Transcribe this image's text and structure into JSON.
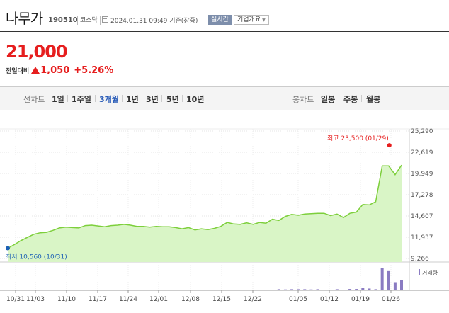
{
  "stock": {
    "name": "나무가",
    "code": "190510",
    "market": "코스닥",
    "datetime": "2024.01.31 09:49 기준(장중)",
    "realtime_label": "실시간",
    "company_label": "기업개요",
    "price": "21,000",
    "change_label": "전일대비",
    "change": "1,050",
    "change_pct": "+5.26%"
  },
  "colors": {
    "up": "#e61e1e",
    "line": "#7dcf3b",
    "fill": "#d9f5c6",
    "volume": "#8a7bc2",
    "low": "#1b5fb5"
  },
  "period_tabs": {
    "line_label": "선차트",
    "items": [
      "1일",
      "1주일",
      "3개월",
      "1년",
      "3년",
      "5년",
      "10년"
    ],
    "active": "3개월",
    "candle_label": "봉차트",
    "candle_items": [
      "일봉",
      "주봉",
      "월봉"
    ]
  },
  "chart_data": {
    "type": "area",
    "y_ticks": [
      "25,290",
      "22,619",
      "19,949",
      "17,278",
      "14,607",
      "11,937",
      "9,266"
    ],
    "x_ticks": [
      "10/31",
      "11/03",
      "11/10",
      "11/17",
      "11/24",
      "12/01",
      "12/08",
      "12/15",
      "12/22",
      "01/05",
      "01/12",
      "01/19",
      "01/26"
    ],
    "ylim": [
      9266,
      25290
    ],
    "prices": [
      10560,
      11000,
      11500,
      11900,
      12300,
      12500,
      12550,
      12800,
      13100,
      13200,
      13150,
      13100,
      13400,
      13450,
      13350,
      13250,
      13400,
      13450,
      13550,
      13450,
      13300,
      13300,
      13200,
      13300,
      13250,
      13250,
      13150,
      13000,
      13150,
      12850,
      13000,
      12900,
      13050,
      13300,
      13800,
      13600,
      13550,
      13750,
      13550,
      13800,
      13700,
      14200,
      14050,
      14550,
      14800,
      14700,
      14850,
      14900,
      14950,
      14950,
      14650,
      14850,
      14400,
      14950,
      15100,
      16050,
      16000,
      16400,
      20900,
      20900,
      19800,
      21000
    ],
    "volumes": [
      0,
      0,
      0,
      0,
      0,
      0,
      0,
      0,
      0,
      0,
      0,
      0,
      0,
      0,
      0,
      0,
      0,
      0,
      0,
      0,
      0,
      0,
      0,
      0,
      0,
      0,
      0,
      0,
      0,
      0,
      0,
      0,
      0,
      0,
      0.03,
      0.03,
      0,
      0,
      0,
      0,
      0,
      0.03,
      0.05,
      0.04,
      0.05,
      0.05,
      0.05,
      0.04,
      0.05,
      0.03,
      0.03,
      0.05,
      0.03,
      0.06,
      0.06,
      0.11,
      0.08,
      0.05,
      1,
      0.88,
      0.36,
      0.44
    ],
    "high_label": "최고 23,500 (01/29)",
    "high_value": 23500,
    "high_index": 59,
    "low_label": "최저 10,560 (10/31)",
    "low_value": 10560,
    "low_index": 0,
    "volume_label": "거래량"
  }
}
